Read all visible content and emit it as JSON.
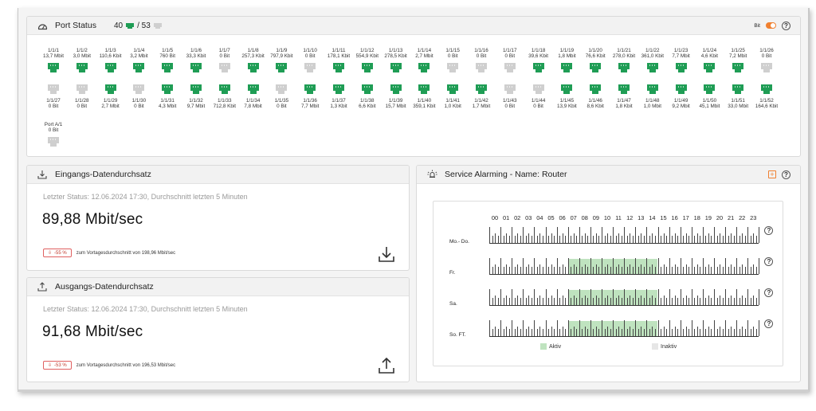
{
  "port_status": {
    "title": "Port Status",
    "active_count": "40",
    "separator": "/ 53",
    "unit_label": "Bit",
    "ports": [
      {
        "name": "1/1/1",
        "rate": "13,7 Mbit",
        "active": true
      },
      {
        "name": "1/1/2",
        "rate": "3,0 Mbit",
        "active": true
      },
      {
        "name": "1/1/3",
        "rate": "110,6 Kbit",
        "active": true
      },
      {
        "name": "1/1/4",
        "rate": "3,2 Mbit",
        "active": true
      },
      {
        "name": "1/1/5",
        "rate": "760 Bit",
        "active": true
      },
      {
        "name": "1/1/6",
        "rate": "33,3 Kbit",
        "active": true
      },
      {
        "name": "1/1/7",
        "rate": "0 Bit",
        "active": false
      },
      {
        "name": "1/1/8",
        "rate": "257,3 Kbit",
        "active": true
      },
      {
        "name": "1/1/9",
        "rate": "797,9 Kbit",
        "active": true
      },
      {
        "name": "1/1/10",
        "rate": "0 Bit",
        "active": false
      },
      {
        "name": "1/1/11",
        "rate": "178,1 Kbit",
        "active": true
      },
      {
        "name": "1/1/12",
        "rate": "554,9 Kbit",
        "active": true
      },
      {
        "name": "1/1/13",
        "rate": "278,5 Kbit",
        "active": true
      },
      {
        "name": "1/1/14",
        "rate": "2,7 Mbit",
        "active": true
      },
      {
        "name": "1/1/15",
        "rate": "0 Bit",
        "active": false
      },
      {
        "name": "1/1/16",
        "rate": "0 Bit",
        "active": false
      },
      {
        "name": "1/1/17",
        "rate": "0 Bit",
        "active": false
      },
      {
        "name": "1/1/18",
        "rate": "39,6 Kbit",
        "active": true
      },
      {
        "name": "1/1/19",
        "rate": "1,8 Mbit",
        "active": true
      },
      {
        "name": "1/1/20",
        "rate": "76,6 Kbit",
        "active": true
      },
      {
        "name": "1/1/21",
        "rate": "278,0 Kbit",
        "active": true
      },
      {
        "name": "1/1/22",
        "rate": "361,0 Kbit",
        "active": true
      },
      {
        "name": "1/1/23",
        "rate": "7,7 Mbit",
        "active": true
      },
      {
        "name": "1/1/24",
        "rate": "4,6 Kbit",
        "active": true
      },
      {
        "name": "1/1/25",
        "rate": "7,2 Mbit",
        "active": true
      },
      {
        "name": "1/1/26",
        "rate": "0 Bit",
        "active": false
      },
      {
        "name": "1/1/27",
        "rate": "0 Bit",
        "active": false
      },
      {
        "name": "1/1/28",
        "rate": "0 Bit",
        "active": false
      },
      {
        "name": "1/1/29",
        "rate": "2,7 Mbit",
        "active": true
      },
      {
        "name": "1/1/30",
        "rate": "0 Bit",
        "active": false
      },
      {
        "name": "1/1/31",
        "rate": "4,3 Mbit",
        "active": true
      },
      {
        "name": "1/1/32",
        "rate": "9,7 Mbit",
        "active": true
      },
      {
        "name": "1/1/33",
        "rate": "712,8 Kbit",
        "active": true
      },
      {
        "name": "1/1/34",
        "rate": "7,8 Mbit",
        "active": true
      },
      {
        "name": "1/1/35",
        "rate": "0 Bit",
        "active": false
      },
      {
        "name": "1/1/36",
        "rate": "7,7 Mbit",
        "active": true
      },
      {
        "name": "1/1/37",
        "rate": "1,3 Kbit",
        "active": true
      },
      {
        "name": "1/1/38",
        "rate": "6,6 Kbit",
        "active": true
      },
      {
        "name": "1/1/39",
        "rate": "15,7 Mbit",
        "active": true
      },
      {
        "name": "1/1/40",
        "rate": "359,1 Kbit",
        "active": true
      },
      {
        "name": "1/1/41",
        "rate": "1,0 Kbit",
        "active": true
      },
      {
        "name": "1/1/42",
        "rate": "1,7 Mbit",
        "active": true
      },
      {
        "name": "1/1/43",
        "rate": "0 Bit",
        "active": false
      },
      {
        "name": "1/1/44",
        "rate": "0 Bit",
        "active": false
      },
      {
        "name": "1/1/45",
        "rate": "13,9 Kbit",
        "active": true
      },
      {
        "name": "1/1/46",
        "rate": "8,6 Kbit",
        "active": true
      },
      {
        "name": "1/1/47",
        "rate": "1,8 Kbit",
        "active": true
      },
      {
        "name": "1/1/48",
        "rate": "1,0 Mbit",
        "active": true
      },
      {
        "name": "1/1/49",
        "rate": "9,2 Mbit",
        "active": true
      },
      {
        "name": "1/1/50",
        "rate": "45,1 Mbit",
        "active": true
      },
      {
        "name": "1/1/51",
        "rate": "33,0 Mbit",
        "active": true
      },
      {
        "name": "1/1/52",
        "rate": "164,6 Kbit",
        "active": true
      },
      {
        "name": "Port A/1",
        "rate": "0 Bit",
        "active": false
      }
    ]
  },
  "ingress": {
    "title": "Eingangs-Datendurchsatz",
    "status": "Letzter Status: 12.06.2024 17:30, Durchschnitt letzten 5 Minuten",
    "value": "89,88 Mbit/sec",
    "badge": "-55 %",
    "avg_text": "zum Vortagesdurchschnitt von 198,96 Mbit/sec"
  },
  "egress": {
    "title": "Ausgangs-Datendurchsatz",
    "status": "Letzter Status: 12.06.2024 17:30, Durchschnitt letzten 5 Minuten",
    "value": "91,68 Mbit/sec",
    "badge": "-53 %",
    "avg_text": "zum Vortagesdurchschnitt von 196,53 Mbit/sec"
  },
  "alarming": {
    "title": "Service Alarming - Name: Router",
    "hours": [
      "00",
      "01",
      "02",
      "03",
      "04",
      "05",
      "06",
      "07",
      "08",
      "09",
      "10",
      "11",
      "12",
      "13",
      "14",
      "15",
      "16",
      "17",
      "18",
      "19",
      "20",
      "21",
      "22",
      "23"
    ],
    "days": [
      {
        "label": "Mo.- Do.",
        "active_from": null,
        "active_to": null
      },
      {
        "label": "Fr.",
        "active_from": 7,
        "active_to": 14
      },
      {
        "label": "Sa.",
        "active_from": 7,
        "active_to": 14
      },
      {
        "label": "So. FT.",
        "active_from": 7,
        "active_to": 14
      }
    ],
    "legend_active": "Aktiv",
    "legend_inactive": "Inaktiv",
    "color_active": "#bfe3bf",
    "color_inactive": "#e6e6e6"
  },
  "colors": {
    "accent": "#f08030",
    "port_active": "#1f9d55",
    "port_inactive": "#cfcfcf",
    "badge_red": "#c0392b"
  }
}
